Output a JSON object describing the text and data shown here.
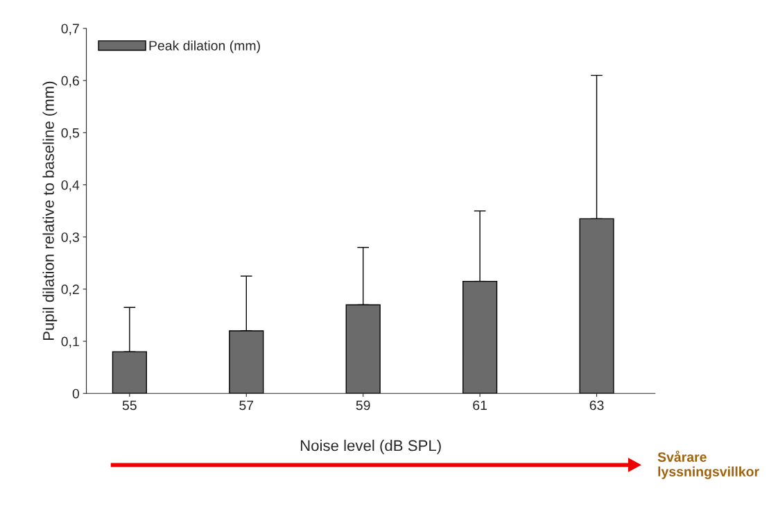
{
  "chart_data": {
    "type": "bar",
    "xlabel": "Noise level (dB SPL)",
    "ylabel": "Pupil dilation relative to baseline (mm)",
    "categories": [
      "55",
      "57",
      "59",
      "61",
      "63"
    ],
    "series": [
      {
        "name": "Peak dilation (mm)",
        "color": "#6b6b6b",
        "values": [
          0.08,
          0.12,
          0.17,
          0.215,
          0.335
        ],
        "errors": [
          [
            0.08,
            0.165
          ],
          [
            0.12,
            0.225
          ],
          [
            0.17,
            0.28
          ],
          [
            0.215,
            0.35
          ],
          [
            0.335,
            0.61
          ]
        ]
      }
    ],
    "ylim": [
      0,
      0.7
    ],
    "yticks": [
      0,
      {
        "value": 0.1,
        "label": "0,1"
      },
      {
        "value": 0.2,
        "label": "0,2"
      },
      {
        "value": 0.3,
        "label": "0,3"
      },
      {
        "value": 0.4,
        "label": "0,4"
      },
      {
        "value": 0.5,
        "label": "0,5"
      },
      {
        "value": 0.6,
        "label": "0,6"
      },
      {
        "value": 0.7,
        "label": "0,7"
      }
    ],
    "grid": false,
    "legend": "top left",
    "annotations": [
      "Svårare\nlyssningsvillkor"
    ]
  }
}
